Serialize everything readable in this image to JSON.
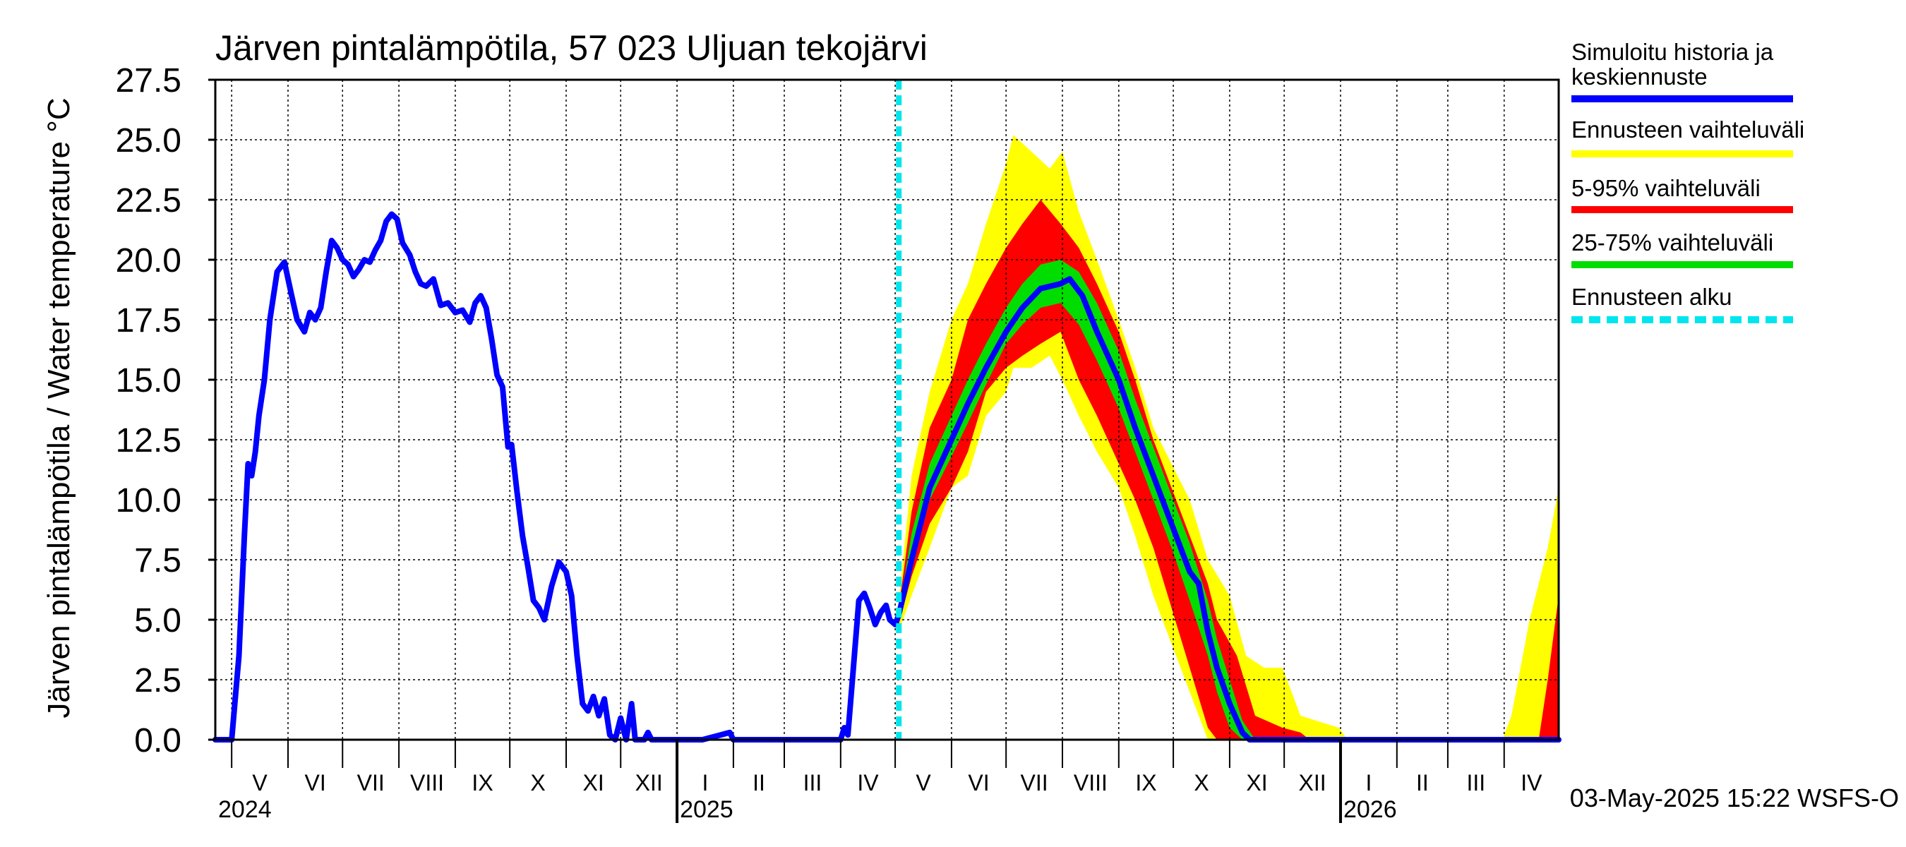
{
  "chart_data": {
    "type": "area",
    "title": "Järven pintalämpötila, 57 023 Uljuan tekojärvi",
    "ylabel": "Järven pintalämpötila / Water temperature °C",
    "xlabel": "",
    "ylim": [
      0,
      27.5
    ],
    "xlim": [
      "2024-04-22",
      "2026-05-01"
    ],
    "y_ticks": [
      "0.0",
      "2.5",
      "5.0",
      "7.5",
      "10.0",
      "12.5",
      "15.0",
      "17.5",
      "20.0",
      "22.5",
      "25.0",
      "27.5"
    ],
    "grid": true,
    "legend_position": "right",
    "months": [
      {
        "label": "V",
        "start": "2024-05-01"
      },
      {
        "label": "VI",
        "start": "2024-06-01"
      },
      {
        "label": "VII",
        "start": "2024-07-01"
      },
      {
        "label": "VIII",
        "start": "2024-08-01"
      },
      {
        "label": "IX",
        "start": "2024-09-01"
      },
      {
        "label": "X",
        "start": "2024-10-01"
      },
      {
        "label": "XI",
        "start": "2024-11-01"
      },
      {
        "label": "XII",
        "start": "2024-12-01"
      },
      {
        "label": "I",
        "start": "2025-01-01"
      },
      {
        "label": "II",
        "start": "2025-02-01"
      },
      {
        "label": "III",
        "start": "2025-03-01"
      },
      {
        "label": "IV",
        "start": "2025-04-01"
      },
      {
        "label": "V",
        "start": "2025-05-01"
      },
      {
        "label": "VI",
        "start": "2025-06-01"
      },
      {
        "label": "VII",
        "start": "2025-07-01"
      },
      {
        "label": "VIII",
        "start": "2025-08-01"
      },
      {
        "label": "IX",
        "start": "2025-09-01"
      },
      {
        "label": "X",
        "start": "2025-10-01"
      },
      {
        "label": "XI",
        "start": "2025-11-01"
      },
      {
        "label": "XII",
        "start": "2025-12-01"
      },
      {
        "label": "I",
        "start": "2026-01-01"
      },
      {
        "label": "II",
        "start": "2026-02-01"
      },
      {
        "label": "III",
        "start": "2026-03-01"
      },
      {
        "label": "IV",
        "start": "2026-04-01"
      }
    ],
    "years": [
      {
        "label": "2024",
        "start": "2024-04-22"
      },
      {
        "label": "2025",
        "start": "2025-01-01"
      },
      {
        "label": "2026",
        "start": "2026-01-01"
      }
    ],
    "forecast_start": "2025-05-03",
    "footer": "03-May-2025 15:22 WSFS-O",
    "legend": [
      {
        "label": "Simuloitu historia ja keskiennuste",
        "color": "#0000ff",
        "style": "solid"
      },
      {
        "label": "Ennusteen vaihteluväli",
        "color": "#ffff00",
        "style": "solid"
      },
      {
        "label": "5-95% vaihteluväli",
        "color": "#ff0000",
        "style": "solid"
      },
      {
        "label": "25-75% vaihteluväli",
        "color": "#00dd00",
        "style": "solid"
      },
      {
        "label": "Ennusteen alku",
        "color": "#00e5ee",
        "style": "dashed"
      }
    ],
    "series": [
      {
        "name": "Simuloitu historia ja keskiennuste",
        "color": "#0000ff",
        "points": [
          [
            "2024-04-22",
            0
          ],
          [
            "2024-05-01",
            0
          ],
          [
            "2024-05-05",
            3.5
          ],
          [
            "2024-05-08",
            8.5
          ],
          [
            "2024-05-10",
            11.5
          ],
          [
            "2024-05-12",
            11.0
          ],
          [
            "2024-05-14",
            12.0
          ],
          [
            "2024-05-16",
            13.5
          ],
          [
            "2024-05-19",
            15.0
          ],
          [
            "2024-05-22",
            17.5
          ],
          [
            "2024-05-26",
            19.5
          ],
          [
            "2024-05-30",
            19.9
          ],
          [
            "2024-06-03",
            18.5
          ],
          [
            "2024-06-06",
            17.5
          ],
          [
            "2024-06-10",
            17.0
          ],
          [
            "2024-06-13",
            17.8
          ],
          [
            "2024-06-16",
            17.5
          ],
          [
            "2024-06-19",
            18.0
          ],
          [
            "2024-06-22",
            19.5
          ],
          [
            "2024-06-25",
            20.8
          ],
          [
            "2024-06-28",
            20.5
          ],
          [
            "2024-07-01",
            20.0
          ],
          [
            "2024-07-04",
            19.8
          ],
          [
            "2024-07-07",
            19.3
          ],
          [
            "2024-07-10",
            19.6
          ],
          [
            "2024-07-13",
            20.0
          ],
          [
            "2024-07-16",
            19.9
          ],
          [
            "2024-07-19",
            20.4
          ],
          [
            "2024-07-22",
            20.8
          ],
          [
            "2024-07-25",
            21.6
          ],
          [
            "2024-07-28",
            21.9
          ],
          [
            "2024-07-31",
            21.7
          ],
          [
            "2024-08-03",
            20.7
          ],
          [
            "2024-08-07",
            20.2
          ],
          [
            "2024-08-10",
            19.5
          ],
          [
            "2024-08-13",
            19.0
          ],
          [
            "2024-08-16",
            18.9
          ],
          [
            "2024-08-20",
            19.2
          ],
          [
            "2024-08-24",
            18.1
          ],
          [
            "2024-08-28",
            18.2
          ],
          [
            "2024-09-01",
            17.8
          ],
          [
            "2024-09-05",
            17.9
          ],
          [
            "2024-09-09",
            17.4
          ],
          [
            "2024-09-12",
            18.2
          ],
          [
            "2024-09-15",
            18.5
          ],
          [
            "2024-09-18",
            18.0
          ],
          [
            "2024-09-21",
            16.7
          ],
          [
            "2024-09-24",
            15.2
          ],
          [
            "2024-09-27",
            14.7
          ],
          [
            "2024-09-30",
            12.2
          ],
          [
            "2024-10-02",
            12.3
          ],
          [
            "2024-10-05",
            10.3
          ],
          [
            "2024-10-08",
            8.5
          ],
          [
            "2024-10-11",
            7.2
          ],
          [
            "2024-10-14",
            5.8
          ],
          [
            "2024-10-17",
            5.5
          ],
          [
            "2024-10-20",
            5.0
          ],
          [
            "2024-10-24",
            6.4
          ],
          [
            "2024-10-28",
            7.4
          ],
          [
            "2024-11-01",
            7.0
          ],
          [
            "2024-11-04",
            6.0
          ],
          [
            "2024-11-07",
            3.5
          ],
          [
            "2024-11-10",
            1.5
          ],
          [
            "2024-11-13",
            1.2
          ],
          [
            "2024-11-16",
            1.8
          ],
          [
            "2024-11-19",
            1.0
          ],
          [
            "2024-11-22",
            1.7
          ],
          [
            "2024-11-25",
            0.2
          ],
          [
            "2024-11-28",
            0.0
          ],
          [
            "2024-12-01",
            0.9
          ],
          [
            "2024-12-04",
            0.0
          ],
          [
            "2024-12-07",
            1.5
          ],
          [
            "2024-12-09",
            0.0
          ],
          [
            "2024-12-14",
            0.0
          ],
          [
            "2024-12-16",
            0.3
          ],
          [
            "2024-12-18",
            0.0
          ],
          [
            "2024-12-31",
            0.0
          ],
          [
            "2025-01-15",
            0.0
          ],
          [
            "2025-01-30",
            0.3
          ],
          [
            "2025-02-01",
            0.0
          ],
          [
            "2025-04-01",
            0.0
          ],
          [
            "2025-04-03",
            0.5
          ],
          [
            "2025-04-05",
            0.2
          ],
          [
            "2025-04-08",
            3.0
          ],
          [
            "2025-04-11",
            5.8
          ],
          [
            "2025-04-14",
            6.1
          ],
          [
            "2025-04-17",
            5.5
          ],
          [
            "2025-04-20",
            4.8
          ],
          [
            "2025-04-23",
            5.3
          ],
          [
            "2025-04-26",
            5.6
          ],
          [
            "2025-04-28",
            5.0
          ],
          [
            "2025-05-01",
            4.8
          ],
          [
            "2025-05-03",
            5.2
          ],
          [
            "2025-05-10",
            7.5
          ],
          [
            "2025-05-20",
            10.5
          ],
          [
            "2025-06-01",
            12.5
          ],
          [
            "2025-06-10",
            14.0
          ],
          [
            "2025-06-20",
            15.5
          ],
          [
            "2025-07-01",
            17.0
          ],
          [
            "2025-07-10",
            18.0
          ],
          [
            "2025-07-20",
            18.8
          ],
          [
            "2025-07-31",
            19.0
          ],
          [
            "2025-08-05",
            19.2
          ],
          [
            "2025-08-12",
            18.5
          ],
          [
            "2025-08-20",
            17.0
          ],
          [
            "2025-09-01",
            15.0
          ],
          [
            "2025-09-10",
            13.0
          ],
          [
            "2025-09-20",
            11.0
          ],
          [
            "2025-09-30",
            9.0
          ],
          [
            "2025-10-10",
            7.0
          ],
          [
            "2025-10-15",
            6.5
          ],
          [
            "2025-10-20",
            4.5
          ],
          [
            "2025-10-25",
            3.0
          ],
          [
            "2025-11-01",
            1.5
          ],
          [
            "2025-11-08",
            0.3
          ],
          [
            "2025-11-12",
            0.0
          ],
          [
            "2026-05-01",
            0.0
          ]
        ]
      },
      {
        "name": "Ennusteen vaihteluväli",
        "color": "#ffff00",
        "band": [
          [
            "2025-05-03",
            4.5,
            5.8
          ],
          [
            "2025-05-10",
            6.0,
            11.0
          ],
          [
            "2025-05-20",
            8.0,
            14.5
          ],
          [
            "2025-06-01",
            10.5,
            17.5
          ],
          [
            "2025-06-10",
            11.0,
            19.0
          ],
          [
            "2025-06-20",
            13.5,
            21.5
          ],
          [
            "2025-07-01",
            14.5,
            24.0
          ],
          [
            "2025-07-05",
            15.5,
            25.2
          ],
          [
            "2025-07-15",
            15.5,
            24.5
          ],
          [
            "2025-07-25",
            16.0,
            23.8
          ],
          [
            "2025-08-01",
            15.0,
            24.5
          ],
          [
            "2025-08-10",
            13.5,
            22.0
          ],
          [
            "2025-08-20",
            12.0,
            20.0
          ],
          [
            "2025-09-01",
            10.5,
            17.5
          ],
          [
            "2025-09-10",
            8.5,
            15.5
          ],
          [
            "2025-09-20",
            6.0,
            13.0
          ],
          [
            "2025-09-30",
            4.0,
            11.5
          ],
          [
            "2025-10-10",
            2.0,
            10.0
          ],
          [
            "2025-10-20",
            0.0,
            7.5
          ],
          [
            "2025-11-01",
            0.0,
            6.0
          ],
          [
            "2025-11-10",
            0.0,
            3.5
          ],
          [
            "2025-11-20",
            0.0,
            3.0
          ],
          [
            "2025-11-30",
            0.0,
            3.0
          ],
          [
            "2025-12-10",
            0.0,
            1.0
          ],
          [
            "2025-12-31",
            0.0,
            0.5
          ],
          [
            "2026-01-05",
            0.0,
            0.0
          ],
          [
            "2026-03-31",
            0.0,
            0.0
          ],
          [
            "2026-04-05",
            0.0,
            1.0
          ],
          [
            "2026-04-15",
            0.0,
            5.0
          ],
          [
            "2026-04-25",
            0.0,
            8.0
          ],
          [
            "2026-05-01",
            0.0,
            10.5
          ]
        ]
      },
      {
        "name": "5-95% vaihteluväli",
        "color": "#ff0000",
        "band": [
          [
            "2025-05-03",
            4.8,
            5.5
          ],
          [
            "2025-05-10",
            6.8,
            9.5
          ],
          [
            "2025-05-20",
            9.0,
            13.0
          ],
          [
            "2025-06-01",
            10.5,
            15.0
          ],
          [
            "2025-06-10",
            12.0,
            17.5
          ],
          [
            "2025-06-20",
            14.5,
            19.0
          ],
          [
            "2025-07-01",
            15.5,
            20.5
          ],
          [
            "2025-07-10",
            16.0,
            21.5
          ],
          [
            "2025-07-20",
            16.5,
            22.5
          ],
          [
            "2025-07-31",
            17.0,
            21.5
          ],
          [
            "2025-08-10",
            15.0,
            20.5
          ],
          [
            "2025-08-20",
            13.5,
            19.0
          ],
          [
            "2025-09-01",
            11.5,
            17.0
          ],
          [
            "2025-09-10",
            10.0,
            15.0
          ],
          [
            "2025-09-20",
            8.0,
            12.5
          ],
          [
            "2025-09-30",
            5.5,
            10.5
          ],
          [
            "2025-10-10",
            3.0,
            8.5
          ],
          [
            "2025-10-20",
            0.5,
            6.5
          ],
          [
            "2025-10-25",
            0.0,
            5.0
          ],
          [
            "2025-11-05",
            0.0,
            3.5
          ],
          [
            "2025-11-15",
            0.0,
            1.0
          ],
          [
            "2025-11-30",
            0.0,
            0.5
          ],
          [
            "2025-12-10",
            0.0,
            0.3
          ],
          [
            "2025-12-15",
            0.0,
            0.0
          ],
          [
            "2026-04-20",
            0.0,
            0.0
          ],
          [
            "2026-04-25",
            0.0,
            2.5
          ],
          [
            "2026-05-01",
            0.0,
            6.0
          ]
        ]
      },
      {
        "name": "25-75% vaihteluväli",
        "color": "#00dd00",
        "band": [
          [
            "2025-05-03",
            5.0,
            5.3
          ],
          [
            "2025-05-10",
            7.2,
            8.6
          ],
          [
            "2025-05-20",
            10.0,
            11.5
          ],
          [
            "2025-06-01",
            11.8,
            13.5
          ],
          [
            "2025-06-10",
            13.2,
            15.0
          ],
          [
            "2025-06-20",
            14.8,
            16.5
          ],
          [
            "2025-07-01",
            16.5,
            18.0
          ],
          [
            "2025-07-10",
            17.3,
            19.0
          ],
          [
            "2025-07-20",
            18.0,
            19.8
          ],
          [
            "2025-07-31",
            18.2,
            20.0
          ],
          [
            "2025-08-10",
            17.3,
            19.5
          ],
          [
            "2025-08-20",
            15.8,
            18.2
          ],
          [
            "2025-09-01",
            13.8,
            16.2
          ],
          [
            "2025-09-10",
            12.0,
            14.2
          ],
          [
            "2025-09-20",
            10.0,
            12.2
          ],
          [
            "2025-09-30",
            8.0,
            10.2
          ],
          [
            "2025-10-10",
            5.8,
            8.2
          ],
          [
            "2025-10-20",
            3.5,
            5.8
          ],
          [
            "2025-10-25",
            2.0,
            4.2
          ],
          [
            "2025-11-01",
            0.5,
            2.5
          ],
          [
            "2025-11-08",
            0.0,
            0.8
          ],
          [
            "2025-11-15",
            0.0,
            0.0
          ],
          [
            "2026-05-01",
            0.0,
            0.0
          ]
        ]
      }
    ]
  }
}
